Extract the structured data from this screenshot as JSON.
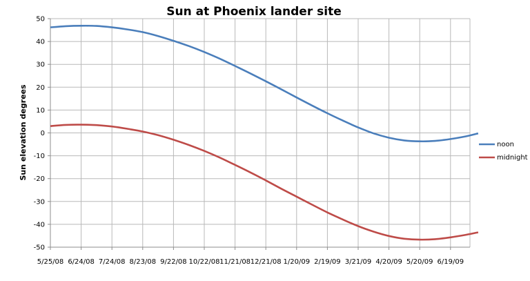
{
  "chart_data": {
    "type": "line",
    "title": "Sun at Phoenix lander site",
    "xlabel": "",
    "ylabel": "Sun elevation degrees",
    "ylim": [
      -50,
      50
    ],
    "yticks": [
      50,
      40,
      30,
      20,
      10,
      0,
      -10,
      -20,
      -30,
      -40,
      -50
    ],
    "categories": [
      "5/25/08",
      "6/24/08",
      "7/24/08",
      "8/23/08",
      "9/22/08",
      "10/22/08",
      "11/21/08",
      "12/21/08",
      "1/20/09",
      "2/19/09",
      "3/21/09",
      "4/20/09",
      "5/20/09",
      "6/19/09"
    ],
    "grid": true,
    "legend": "right",
    "series": [
      {
        "name": "noon",
        "color": "#4a7ebb",
        "x": [
          0,
          0.5,
          1,
          1.5,
          2,
          2.5,
          3,
          3.5,
          4,
          4.5,
          5,
          5.5,
          6,
          6.5,
          7,
          7.5,
          8,
          8.5,
          9,
          9.5,
          10,
          10.5,
          11,
          11.5,
          12,
          12.5,
          13,
          13.5,
          13.9
        ],
        "values": [
          46.2,
          46.7,
          46.9,
          46.8,
          46.2,
          45.3,
          44.1,
          42.4,
          40.3,
          38,
          35.4,
          32.5,
          29.3,
          26,
          22.6,
          19.1,
          15.5,
          12,
          8.6,
          5.4,
          2.4,
          -0.2,
          -2.1,
          -3.3,
          -3.7,
          -3.5,
          -2.7,
          -1.5,
          -0.2
        ]
      },
      {
        "name": "midnight",
        "color": "#be4b48",
        "x": [
          0,
          0.5,
          1,
          1.5,
          2,
          2.5,
          3,
          3.5,
          4,
          4.5,
          5,
          5.5,
          6,
          6.5,
          7,
          7.5,
          8,
          8.5,
          9,
          9.5,
          10,
          10.5,
          11,
          11.5,
          12,
          12.5,
          13,
          13.5,
          13.9
        ],
        "values": [
          3,
          3.5,
          3.6,
          3.4,
          2.8,
          1.8,
          0.6,
          -1,
          -3,
          -5.3,
          -7.9,
          -10.8,
          -14,
          -17.3,
          -20.8,
          -24.4,
          -27.9,
          -31.4,
          -34.8,
          -37.9,
          -40.8,
          -43.2,
          -45.1,
          -46.3,
          -46.7,
          -46.5,
          -45.7,
          -44.6,
          -43.5
        ]
      }
    ]
  }
}
